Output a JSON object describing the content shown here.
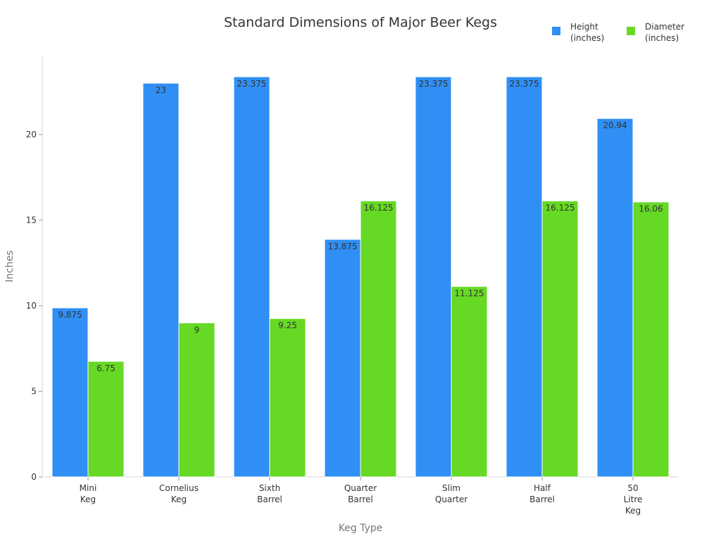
{
  "chart_data": {
    "type": "bar",
    "title": "Standard Dimensions of Major Beer Kegs",
    "xlabel": "Keg Type",
    "ylabel": "Inches",
    "categories": [
      "Mini Keg",
      "Cornelius Keg",
      "Sixth Barrel",
      "Quarter Barrel",
      "Slim Quarter",
      "Half Barrel",
      "50 Litre Keg"
    ],
    "category_lines": [
      [
        "Mini",
        "Keg"
      ],
      [
        "Cornelius",
        "Keg"
      ],
      [
        "Sixth",
        "Barrel"
      ],
      [
        "Quarter",
        "Barrel"
      ],
      [
        "Slim",
        "Quarter"
      ],
      [
        "Half",
        "Barrel"
      ],
      [
        "50",
        "Litre",
        "Keg"
      ]
    ],
    "series": [
      {
        "name": "Height (inches)",
        "name_lines": [
          "Height",
          "(inches)"
        ],
        "color": "#2f8ff5",
        "values": [
          9.875,
          23,
          23.375,
          13.875,
          23.375,
          23.375,
          20.94
        ]
      },
      {
        "name": "Diameter (inches)",
        "name_lines": [
          "Diameter",
          "(inches)"
        ],
        "color": "#66d925",
        "values": [
          6.75,
          9,
          9.25,
          16.125,
          11.125,
          16.125,
          16.06
        ]
      }
    ],
    "yticks": [
      0,
      5,
      10,
      15,
      20
    ],
    "ylim": [
      0,
      24.6
    ],
    "grid": false,
    "legend_position": "top-right",
    "data_labels": true
  }
}
